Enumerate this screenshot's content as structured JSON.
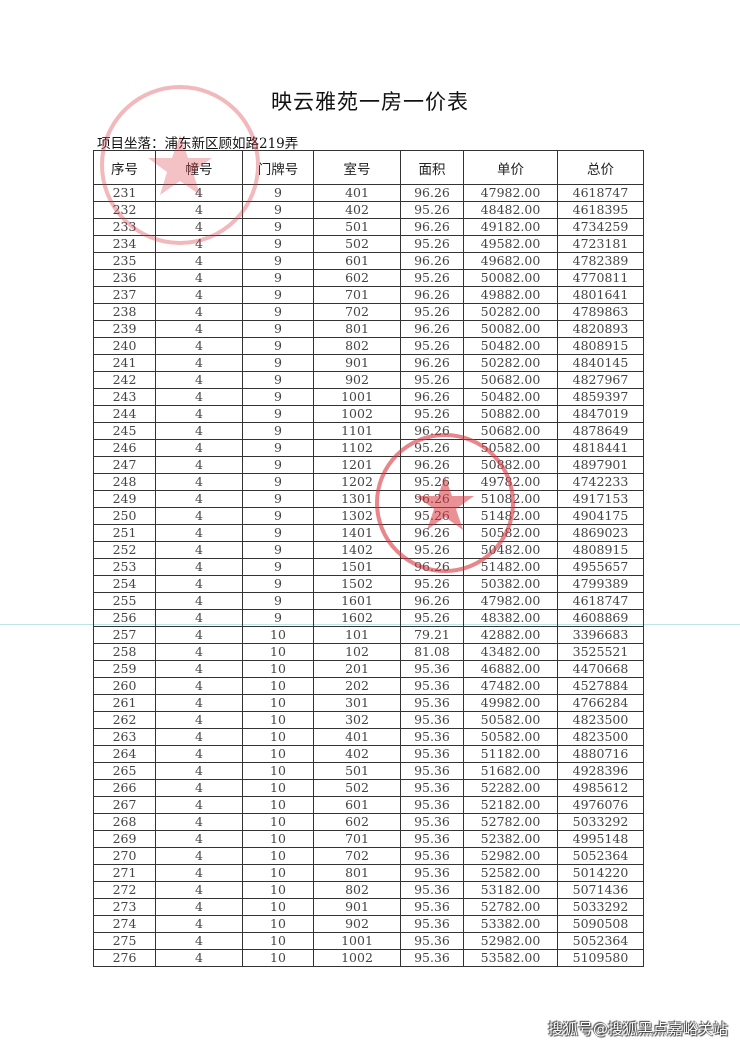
{
  "title": "映云雅苑一房一价表",
  "location": "项目坐落：浦东新区顾如路219弄",
  "columns": [
    "序号",
    "幢号",
    "门牌号",
    "室号",
    "面积",
    "单价",
    "总价"
  ],
  "rows": [
    [
      "231",
      "4",
      "9",
      "401",
      "96.26",
      "47982.00",
      "4618747"
    ],
    [
      "232",
      "4",
      "9",
      "402",
      "95.26",
      "48482.00",
      "4618395"
    ],
    [
      "233",
      "4",
      "9",
      "501",
      "96.26",
      "49182.00",
      "4734259"
    ],
    [
      "234",
      "4",
      "9",
      "502",
      "95.26",
      "49582.00",
      "4723181"
    ],
    [
      "235",
      "4",
      "9",
      "601",
      "96.26",
      "49682.00",
      "4782389"
    ],
    [
      "236",
      "4",
      "9",
      "602",
      "95.26",
      "50082.00",
      "4770811"
    ],
    [
      "237",
      "4",
      "9",
      "701",
      "96.26",
      "49882.00",
      "4801641"
    ],
    [
      "238",
      "4",
      "9",
      "702",
      "95.26",
      "50282.00",
      "4789863"
    ],
    [
      "239",
      "4",
      "9",
      "801",
      "96.26",
      "50082.00",
      "4820893"
    ],
    [
      "240",
      "4",
      "9",
      "802",
      "95.26",
      "50482.00",
      "4808915"
    ],
    [
      "241",
      "4",
      "9",
      "901",
      "96.26",
      "50282.00",
      "4840145"
    ],
    [
      "242",
      "4",
      "9",
      "902",
      "95.26",
      "50682.00",
      "4827967"
    ],
    [
      "243",
      "4",
      "9",
      "1001",
      "96.26",
      "50482.00",
      "4859397"
    ],
    [
      "244",
      "4",
      "9",
      "1002",
      "95.26",
      "50882.00",
      "4847019"
    ],
    [
      "245",
      "4",
      "9",
      "1101",
      "96.26",
      "50682.00",
      "4878649"
    ],
    [
      "246",
      "4",
      "9",
      "1102",
      "95.26",
      "50582.00",
      "4818441"
    ],
    [
      "247",
      "4",
      "9",
      "1201",
      "96.26",
      "50882.00",
      "4897901"
    ],
    [
      "248",
      "4",
      "9",
      "1202",
      "95.26",
      "49782.00",
      "4742233"
    ],
    [
      "249",
      "4",
      "9",
      "1301",
      "96.26",
      "51082.00",
      "4917153"
    ],
    [
      "250",
      "4",
      "9",
      "1302",
      "95.26",
      "51482.00",
      "4904175"
    ],
    [
      "251",
      "4",
      "9",
      "1401",
      "96.26",
      "50582.00",
      "4869023"
    ],
    [
      "252",
      "4",
      "9",
      "1402",
      "95.26",
      "50482.00",
      "4808915"
    ],
    [
      "253",
      "4",
      "9",
      "1501",
      "96.26",
      "51482.00",
      "4955657"
    ],
    [
      "254",
      "4",
      "9",
      "1502",
      "95.26",
      "50382.00",
      "4799389"
    ],
    [
      "255",
      "4",
      "9",
      "1601",
      "96.26",
      "47982.00",
      "4618747"
    ],
    [
      "256",
      "4",
      "9",
      "1602",
      "95.26",
      "48382.00",
      "4608869"
    ],
    [
      "257",
      "4",
      "10",
      "101",
      "79.21",
      "42882.00",
      "3396683"
    ],
    [
      "258",
      "4",
      "10",
      "102",
      "81.08",
      "43482.00",
      "3525521"
    ],
    [
      "259",
      "4",
      "10",
      "201",
      "95.36",
      "46882.00",
      "4470668"
    ],
    [
      "260",
      "4",
      "10",
      "202",
      "95.36",
      "47482.00",
      "4527884"
    ],
    [
      "261",
      "4",
      "10",
      "301",
      "95.36",
      "49982.00",
      "4766284"
    ],
    [
      "262",
      "4",
      "10",
      "302",
      "95.36",
      "50582.00",
      "4823500"
    ],
    [
      "263",
      "4",
      "10",
      "401",
      "95.36",
      "50582.00",
      "4823500"
    ],
    [
      "264",
      "4",
      "10",
      "402",
      "95.36",
      "51182.00",
      "4880716"
    ],
    [
      "265",
      "4",
      "10",
      "501",
      "95.36",
      "51682.00",
      "4928396"
    ],
    [
      "266",
      "4",
      "10",
      "502",
      "95.36",
      "52282.00",
      "4985612"
    ],
    [
      "267",
      "4",
      "10",
      "601",
      "95.36",
      "52182.00",
      "4976076"
    ],
    [
      "268",
      "4",
      "10",
      "602",
      "95.36",
      "52782.00",
      "5033292"
    ],
    [
      "269",
      "4",
      "10",
      "701",
      "95.36",
      "52382.00",
      "4995148"
    ],
    [
      "270",
      "4",
      "10",
      "702",
      "95.36",
      "52982.00",
      "5052364"
    ],
    [
      "271",
      "4",
      "10",
      "801",
      "95.36",
      "52582.00",
      "5014220"
    ],
    [
      "272",
      "4",
      "10",
      "802",
      "95.36",
      "53182.00",
      "5071436"
    ],
    [
      "273",
      "4",
      "10",
      "901",
      "95.36",
      "52782.00",
      "5033292"
    ],
    [
      "274",
      "4",
      "10",
      "902",
      "95.36",
      "53382.00",
      "5090508"
    ],
    [
      "275",
      "4",
      "10",
      "1001",
      "95.36",
      "52982.00",
      "5052364"
    ],
    [
      "276",
      "4",
      "10",
      "1002",
      "95.36",
      "53582.00",
      "5109580"
    ]
  ],
  "watermark": "搜狐号@搜狐黑点嘉峪关站",
  "stamp_color": "#d9363e"
}
